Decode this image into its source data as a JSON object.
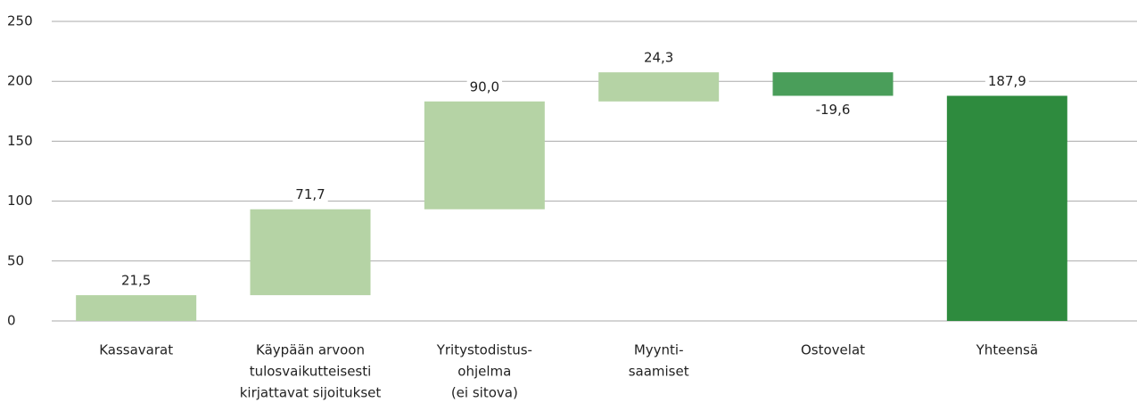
{
  "chart_data": {
    "type": "waterfall",
    "categories": [
      [
        "Kassavarat"
      ],
      [
        "Käypään arvoon",
        "tulosvaikutteisesti",
        "kirjattavat sijoitukset"
      ],
      [
        "Yritystodistus-",
        "ohjelma",
        "(ei sitova)"
      ],
      [
        "Myynti-",
        "saamiset"
      ],
      [
        "Ostovelat"
      ],
      [
        "Yhteensä"
      ]
    ],
    "values": [
      21.5,
      71.7,
      90.0,
      24.3,
      -19.6,
      187.9
    ],
    "value_labels": [
      "21,5",
      "71,7",
      "90,0",
      "24,3",
      "-19,6",
      "187,9"
    ],
    "is_total": [
      false,
      false,
      false,
      false,
      false,
      true
    ],
    "colors": [
      "#b5d3a5",
      "#b5d3a5",
      "#b5d3a5",
      "#b5d3a5",
      "#4a9e5a",
      "#2e8b3e"
    ],
    "ylim": [
      0,
      250
    ],
    "yticks": [
      0,
      50,
      100,
      150,
      200,
      250
    ],
    "grid": true
  }
}
